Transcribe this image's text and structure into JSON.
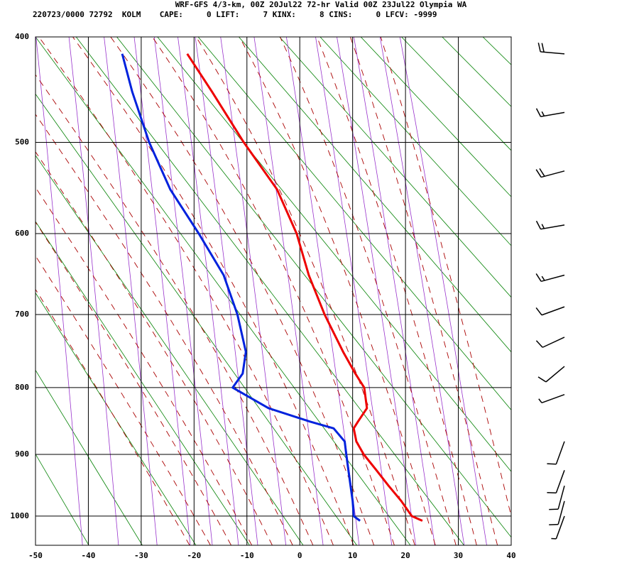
{
  "chart_data": {
    "type": "skewt",
    "title": "WRF-GFS 4/3-km, 00Z 20Jul22 72-hr Valid 00Z 23Jul22 Olympia WA",
    "subtitle": "220723/0000 72792  KOLM    CAPE:     0 LIFT:     7 KINX:     8 CINS:     0 LFCV: -9999",
    "xlim": [
      -50,
      40
    ],
    "xticks": [
      -50,
      -40,
      -30,
      -20,
      -10,
      0,
      10,
      20,
      30,
      40
    ],
    "ylim": [
      1050,
      400
    ],
    "yticks": [
      400,
      500,
      600,
      700,
      800,
      900,
      1000
    ],
    "grid": true,
    "y": [
      1008,
      1000,
      975,
      950,
      925,
      900,
      880,
      860,
      850,
      830,
      800,
      780,
      750,
      700,
      650,
      600,
      550,
      500,
      450,
      415
    ],
    "series": [
      {
        "color": "#ee0000",
        "values": [
          23.2,
          21.2,
          19.2,
          16.8,
          14.5,
          12.1,
          10.7,
          10.2,
          11.0,
          12.7,
          12.2,
          10.5,
          8.2,
          4.7,
          1.7,
          -0.6,
          -4.3,
          -10.6,
          -16.6,
          -21.3
        ]
      },
      {
        "color": "#0022dd",
        "values": [
          11.4,
          10.2,
          10.0,
          9.6,
          9.2,
          8.8,
          8.5,
          6.4,
          2.0,
          -5.9,
          -12.7,
          -10.8,
          -10.2,
          -11.8,
          -14.4,
          -19.1,
          -24.5,
          -28.5,
          -31.7,
          -33.6
        ]
      }
    ],
    "winds": {
      "pressure": [
        1000,
        975,
        950,
        925,
        880,
        810,
        770,
        730,
        690,
        650,
        590,
        530,
        470,
        415
      ],
      "direction": [
        200,
        195,
        195,
        200,
        200,
        250,
        230,
        245,
        250,
        255,
        260,
        255,
        260,
        275
      ],
      "speed": [
        5,
        10,
        10,
        10,
        10,
        5,
        10,
        10,
        10,
        15,
        15,
        20,
        15,
        20
      ]
    }
  }
}
